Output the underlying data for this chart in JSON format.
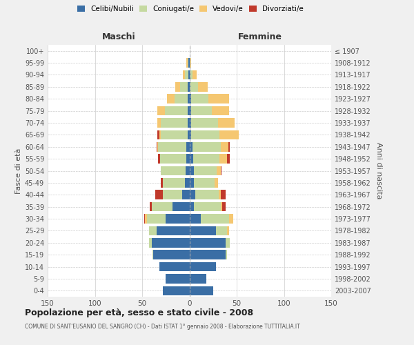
{
  "age_groups": [
    "0-4",
    "5-9",
    "10-14",
    "15-19",
    "20-24",
    "25-29",
    "30-34",
    "35-39",
    "40-44",
    "45-49",
    "50-54",
    "55-59",
    "60-64",
    "65-69",
    "70-74",
    "75-79",
    "80-84",
    "85-89",
    "90-94",
    "95-99",
    "100+"
  ],
  "birth_years": [
    "2003-2007",
    "1998-2002",
    "1993-1997",
    "1988-1992",
    "1983-1987",
    "1978-1982",
    "1973-1977",
    "1968-1972",
    "1963-1967",
    "1958-1962",
    "1953-1957",
    "1948-1952",
    "1943-1947",
    "1938-1942",
    "1933-1937",
    "1928-1932",
    "1923-1927",
    "1918-1922",
    "1913-1917",
    "1908-1912",
    "≤ 1907"
  ],
  "males_celibi": [
    28,
    25,
    32,
    38,
    40,
    35,
    25,
    18,
    8,
    5,
    4,
    3,
    3,
    2,
    2,
    2,
    2,
    2,
    1,
    1,
    0
  ],
  "males_coniugati": [
    0,
    0,
    0,
    1,
    3,
    8,
    20,
    22,
    20,
    23,
    26,
    28,
    30,
    28,
    28,
    24,
    14,
    8,
    4,
    1,
    0
  ],
  "males_vedovi": [
    0,
    0,
    0,
    0,
    0,
    0,
    2,
    0,
    0,
    0,
    0,
    0,
    1,
    2,
    4,
    8,
    8,
    5,
    2,
    1,
    0
  ],
  "males_divorziati": [
    0,
    0,
    0,
    0,
    0,
    0,
    1,
    2,
    8,
    2,
    0,
    2,
    1,
    2,
    0,
    0,
    0,
    0,
    0,
    0,
    0
  ],
  "females_nubili": [
    25,
    18,
    28,
    38,
    38,
    28,
    12,
    5,
    6,
    5,
    5,
    4,
    3,
    2,
    2,
    2,
    2,
    1,
    1,
    0,
    0
  ],
  "females_coniugate": [
    0,
    0,
    0,
    2,
    5,
    12,
    30,
    28,
    25,
    22,
    24,
    28,
    30,
    30,
    28,
    22,
    18,
    8,
    2,
    1,
    0
  ],
  "females_vedove": [
    0,
    0,
    0,
    0,
    0,
    2,
    4,
    2,
    2,
    3,
    4,
    8,
    8,
    20,
    18,
    18,
    22,
    10,
    5,
    1,
    0
  ],
  "females_divorziate": [
    0,
    0,
    0,
    0,
    0,
    0,
    0,
    3,
    5,
    0,
    1,
    3,
    2,
    0,
    0,
    0,
    0,
    0,
    0,
    0,
    0
  ],
  "color_celibi": "#3a6ea5",
  "color_coniugati": "#c5d9a0",
  "color_vedovi": "#f5c771",
  "color_divorziati": "#c0392b",
  "title": "Popolazione per età, sesso e stato civile - 2008",
  "subtitle": "COMUNE DI SANT'EUSANIO DEL SANGRO (CH) - Dati ISTAT 1° gennaio 2008 - Elaborazione TUTTITALIA.IT",
  "ylabel_left": "Fasce di età",
  "ylabel_right": "Anni di nascita",
  "xlabel_maschi": "Maschi",
  "xlabel_femmine": "Femmine",
  "xlim": 150,
  "bg_color": "#f0f0f0",
  "plot_bg": "#ffffff",
  "grid_color": "#cccccc",
  "text_color": "#555555"
}
